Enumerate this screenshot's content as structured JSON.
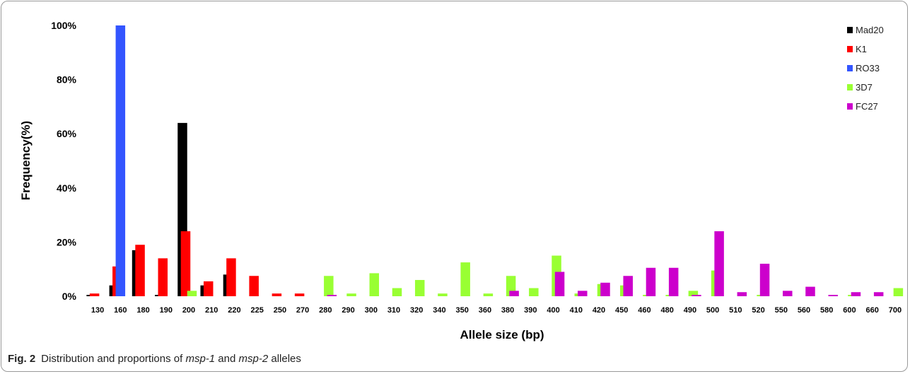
{
  "chart_data": {
    "type": "bar",
    "xlabel": "Allele size (bp)",
    "ylabel": "Frequency(%)",
    "ylim": [
      0,
      100
    ],
    "yticks": [
      "0%",
      "20%",
      "40%",
      "60%",
      "80%",
      "100%"
    ],
    "ytick_values": [
      0,
      20,
      40,
      60,
      80,
      100
    ],
    "grid": false,
    "legend_position": "top-right",
    "categories": [
      "130",
      "160",
      "180",
      "190",
      "200",
      "210",
      "220",
      "225",
      "250",
      "270",
      "280",
      "290",
      "300",
      "310",
      "320",
      "340",
      "350",
      "360",
      "380",
      "390",
      "400",
      "410",
      "420",
      "450",
      "460",
      "480",
      "490",
      "500",
      "510",
      "520",
      "550",
      "560",
      "580",
      "600",
      "660",
      "700"
    ],
    "series": [
      {
        "name": "Mad20",
        "color": "#000000",
        "values": [
          0.5,
          4,
          17,
          0.5,
          64,
          4,
          8,
          0,
          0,
          0,
          0,
          0,
          0,
          0,
          0,
          0,
          0,
          0,
          0,
          0,
          0,
          0,
          0,
          0,
          0,
          0,
          0,
          0,
          0,
          0,
          0,
          0,
          0,
          0,
          0,
          0
        ]
      },
      {
        "name": "K1",
        "color": "#ff0000",
        "values": [
          1,
          11,
          19,
          14,
          24,
          5.5,
          14,
          7.5,
          1,
          1,
          0,
          0,
          0,
          0,
          0,
          0,
          0,
          0,
          0,
          0,
          0,
          0,
          0,
          0,
          0,
          0,
          0,
          0,
          0,
          0,
          0,
          0,
          0,
          0,
          0,
          0
        ]
      },
      {
        "name": "RO33",
        "color": "#3355ff",
        "values": [
          0,
          100,
          0,
          0,
          0,
          0,
          0,
          0,
          0,
          0,
          0,
          0,
          0,
          0,
          0,
          0,
          0,
          0,
          0,
          0,
          0,
          0,
          0,
          0,
          0,
          0,
          0,
          0,
          0,
          0,
          0,
          0,
          0,
          0,
          0,
          0
        ]
      },
      {
        "name": "3D7",
        "color": "#99ff33",
        "values": [
          0,
          0,
          0,
          0,
          2,
          0,
          0,
          0,
          0,
          0,
          7.5,
          1,
          8.5,
          3,
          6,
          1,
          12.5,
          1,
          7.5,
          3,
          15,
          1,
          4.5,
          4,
          0.5,
          0.5,
          2,
          9.5,
          0,
          0.5,
          0,
          0,
          0,
          0.5,
          0,
          3
        ]
      },
      {
        "name": "FC27",
        "color": "#cc00cc",
        "values": [
          0,
          0,
          0,
          0,
          0,
          0,
          0,
          0,
          0,
          0,
          0.5,
          0,
          0,
          0,
          0,
          0,
          0,
          0,
          2,
          0,
          9,
          2,
          5,
          7.5,
          10.5,
          10.5,
          0.5,
          24,
          1.5,
          12,
          2,
          3.5,
          0.5,
          1.5,
          1.5,
          0
        ]
      }
    ]
  },
  "caption": {
    "label": "Fig. 2",
    "text_before": "Distribution and proportions of ",
    "gene1": "msp-1",
    "text_mid": " and ",
    "gene2": "msp-2",
    "text_after": " alleles"
  }
}
